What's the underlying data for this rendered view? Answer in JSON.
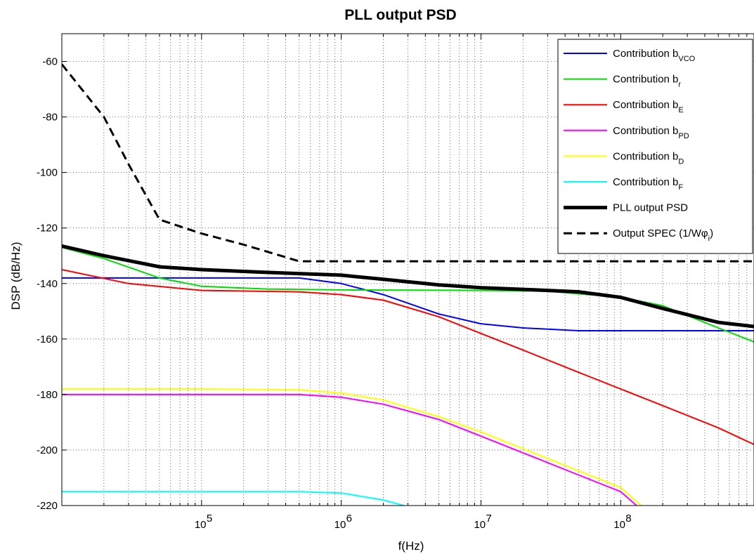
{
  "chart_data": {
    "type": "line",
    "title": "PLL output PSD",
    "xlabel": "f(Hz)",
    "ylabel": "DSP (dB/Hz)",
    "x_scale": "log",
    "xlim": [
      10000,
      900000000
    ],
    "ylim": [
      -220,
      -50
    ],
    "grid": true,
    "legend_position": "top-right",
    "y_ticks": [
      -60,
      -80,
      -100,
      -120,
      -140,
      -160,
      -180,
      -200,
      -220
    ],
    "y_tick_labels": [
      "-60",
      "-80",
      "-100",
      "-120",
      "-140",
      "-160",
      "-180",
      "-200",
      "-220"
    ],
    "x_tick_labels": [
      {
        "base": "10",
        "exp": "5"
      },
      {
        "base": "10",
        "exp": "6"
      },
      {
        "base": "10",
        "exp": "7"
      },
      {
        "base": "10",
        "exp": "8"
      }
    ],
    "series": [
      {
        "label": "Contribution b",
        "sub": "VCO",
        "color": "#0000ff",
        "width": 2,
        "dash": "",
        "points": [
          [
            10000,
            -138
          ],
          [
            100000,
            -138
          ],
          [
            500000,
            -138
          ],
          [
            1000000,
            -140
          ],
          [
            2000000,
            -144
          ],
          [
            5000000,
            -151
          ],
          [
            10000000,
            -154.5
          ],
          [
            20000000,
            -156
          ],
          [
            50000000,
            -157
          ],
          [
            900000000,
            -157
          ]
        ]
      },
      {
        "label": "Contribution b",
        "sub": "r",
        "color": "#00dd00",
        "width": 2,
        "dash": "",
        "points": [
          [
            10000,
            -127
          ],
          [
            20000,
            -131
          ],
          [
            50000,
            -138
          ],
          [
            100000,
            -141
          ],
          [
            300000,
            -142
          ],
          [
            1000000,
            -142.3
          ],
          [
            10000000,
            -142.5
          ],
          [
            30000000,
            -142.8
          ],
          [
            100000000,
            -145
          ],
          [
            200000000,
            -148
          ],
          [
            500000000,
            -156
          ],
          [
            900000000,
            -161
          ]
        ]
      },
      {
        "label": "Contribution b",
        "sub": "E",
        "color": "#ff0000",
        "width": 2,
        "dash": "",
        "points": [
          [
            10000,
            -135
          ],
          [
            30000,
            -140
          ],
          [
            100000,
            -142.5
          ],
          [
            500000,
            -143
          ],
          [
            1000000,
            -144
          ],
          [
            2000000,
            -146
          ],
          [
            5000000,
            -152
          ],
          [
            10000000,
            -158
          ],
          [
            20000000,
            -164
          ],
          [
            50000000,
            -172
          ],
          [
            100000000,
            -178
          ],
          [
            200000000,
            -184
          ],
          [
            500000000,
            -192
          ],
          [
            900000000,
            -198
          ]
        ]
      },
      {
        "label": "Contribution b",
        "sub": "PD",
        "color": "#ff00ff",
        "width": 2,
        "dash": "",
        "points": [
          [
            10000,
            -180
          ],
          [
            100000,
            -180
          ],
          [
            500000,
            -180
          ],
          [
            1000000,
            -181
          ],
          [
            2000000,
            -183.5
          ],
          [
            5000000,
            -189
          ],
          [
            10000000,
            -195
          ],
          [
            20000000,
            -201
          ],
          [
            50000000,
            -209
          ],
          [
            100000000,
            -215
          ],
          [
            130000000,
            -220
          ]
        ]
      },
      {
        "label": "Contribution b",
        "sub": "D",
        "color": "#ffff00",
        "width": 2,
        "dash": "",
        "points": [
          [
            10000,
            -178
          ],
          [
            100000,
            -178
          ],
          [
            500000,
            -178.3
          ],
          [
            1000000,
            -179.5
          ],
          [
            2000000,
            -182
          ],
          [
            5000000,
            -188
          ],
          [
            10000000,
            -193.5
          ],
          [
            20000000,
            -199.5
          ],
          [
            50000000,
            -207.5
          ],
          [
            100000000,
            -213.5
          ],
          [
            140000000,
            -220
          ]
        ]
      },
      {
        "label": "Contribution b",
        "sub": "F",
        "color": "#00ffff",
        "width": 2,
        "dash": "",
        "points": [
          [
            10000,
            -215
          ],
          [
            100000,
            -215
          ],
          [
            500000,
            -215
          ],
          [
            1000000,
            -215.5
          ],
          [
            2000000,
            -218
          ],
          [
            2800000,
            -220
          ]
        ]
      },
      {
        "label": "PLL output PSD",
        "sub": "",
        "color": "#000000",
        "width": 5,
        "dash": "",
        "points": [
          [
            10000,
            -126.5
          ],
          [
            20000,
            -130
          ],
          [
            50000,
            -134
          ],
          [
            100000,
            -135
          ],
          [
            300000,
            -136
          ],
          [
            1000000,
            -137
          ],
          [
            2000000,
            -138.5
          ],
          [
            5000000,
            -140.5
          ],
          [
            10000000,
            -141.5
          ],
          [
            30000000,
            -142.5
          ],
          [
            50000000,
            -143
          ],
          [
            100000000,
            -145
          ],
          [
            200000000,
            -149
          ],
          [
            500000000,
            -154
          ],
          [
            900000000,
            -155.5
          ]
        ]
      },
      {
        "label": "Output SPEC (1/W",
        "sub": "",
        "color": "#000000",
        "width": 3,
        "dash": "12,7",
        "points": [
          [
            10000,
            -61
          ],
          [
            20000,
            -80
          ],
          [
            30000,
            -97
          ],
          [
            50000,
            -117
          ],
          [
            100000,
            -122
          ],
          [
            200000,
            -126
          ],
          [
            500000,
            -132
          ],
          [
            900000000,
            -132
          ]
        ]
      }
    ],
    "legend": [
      {
        "text": "Contribution b",
        "sub": "VCO"
      },
      {
        "text": "Contribution b",
        "sub": "r"
      },
      {
        "text": "Contribution b",
        "sub": "E"
      },
      {
        "text": "Contribution b",
        "sub": "PD"
      },
      {
        "text": "Contribution b",
        "sub": "D"
      },
      {
        "text": "Contribution b",
        "sub": "F"
      },
      {
        "text": "PLL output PSD",
        "sub": ""
      },
      {
        "text": "Output SPEC (1/Wφ",
        "sub": "i",
        "suffix": ")"
      }
    ]
  }
}
